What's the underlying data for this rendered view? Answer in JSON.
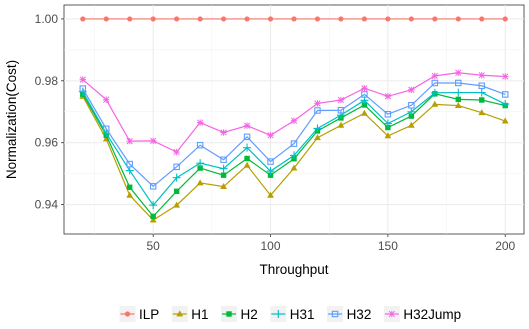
{
  "chart_data": {
    "type": "line",
    "xlabel": "Throughput",
    "ylabel": "Normalization(Cost)",
    "xlim": [
      12,
      208
    ],
    "ylim": [
      0.9305,
      1.0045
    ],
    "x_ticks": [
      50,
      100,
      150,
      200
    ],
    "y_ticks": [
      0.94,
      0.96,
      0.98,
      1.0
    ],
    "y_tick_labels": [
      "0.94",
      "0.96",
      "0.98",
      "1.00"
    ],
    "grid": true,
    "legend_position": "bottom",
    "x": [
      20,
      30,
      40,
      50,
      60,
      70,
      80,
      90,
      100,
      110,
      120,
      130,
      140,
      150,
      160,
      170,
      180,
      190,
      200
    ],
    "series": [
      {
        "name": "ILP",
        "color": "#F8766D",
        "marker": "circle",
        "values": [
          1.0,
          1.0,
          1.0,
          1.0,
          1.0,
          1.0,
          1.0,
          1.0,
          1.0,
          1.0,
          1.0,
          1.0,
          1.0,
          1.0,
          1.0,
          1.0,
          1.0,
          1.0,
          1.0
        ]
      },
      {
        "name": "H1",
        "color": "#B79F00",
        "marker": "triangle",
        "values": [
          0.975,
          0.9612,
          0.943,
          0.935,
          0.9398,
          0.947,
          0.9458,
          0.9527,
          0.943,
          0.9518,
          0.9616,
          0.9656,
          0.9695,
          0.9622,
          0.9656,
          0.9724,
          0.972,
          0.9697,
          0.967
        ]
      },
      {
        "name": "H2",
        "color": "#00BA38",
        "marker": "square",
        "values": [
          0.9757,
          0.9624,
          0.9456,
          0.9362,
          0.9443,
          0.9518,
          0.9495,
          0.9549,
          0.9495,
          0.9548,
          0.9638,
          0.968,
          0.9722,
          0.9649,
          0.9686,
          0.9758,
          0.974,
          0.9738,
          0.972
        ]
      },
      {
        "name": "H31",
        "color": "#00BFC4",
        "marker": "plus",
        "values": [
          0.9765,
          0.963,
          0.951,
          0.9398,
          0.9487,
          0.9534,
          0.9516,
          0.9584,
          0.9508,
          0.9559,
          0.9646,
          0.9689,
          0.9737,
          0.9662,
          0.97,
          0.9761,
          0.9762,
          0.9762,
          0.9725
        ]
      },
      {
        "name": "H32",
        "color": "#619CFF",
        "marker": "square-open",
        "values": [
          0.9775,
          0.9645,
          0.9531,
          0.9459,
          0.9522,
          0.9592,
          0.9545,
          0.9619,
          0.9539,
          0.9597,
          0.9704,
          0.9705,
          0.9756,
          0.9692,
          0.9721,
          0.9793,
          0.9793,
          0.9784,
          0.9756
        ]
      },
      {
        "name": "H32Jump",
        "color": "#F564E3",
        "marker": "asterisk",
        "values": [
          0.9804,
          0.9739,
          0.9605,
          0.9606,
          0.957,
          0.9665,
          0.9633,
          0.9655,
          0.9624,
          0.9671,
          0.9727,
          0.9738,
          0.9776,
          0.975,
          0.9771,
          0.9816,
          0.9826,
          0.9818,
          0.9814
        ]
      }
    ]
  }
}
